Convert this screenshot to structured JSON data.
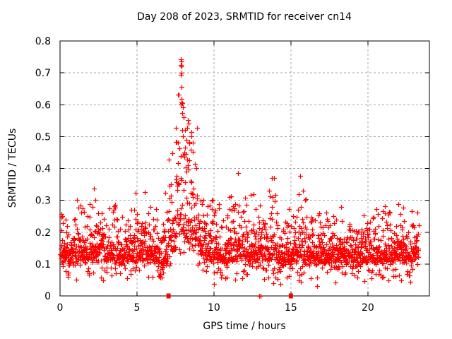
{
  "chart_data": {
    "type": "scatter",
    "title": "Day 208 of 2023, SRMTID for receiver cn14",
    "xlabel": "GPS time / hours",
    "ylabel": "SRMTID / TECUs",
    "xlim": [
      0,
      24
    ],
    "ylim": [
      0,
      0.8
    ],
    "xticks": [
      0,
      5,
      10,
      15,
      20
    ],
    "yticks": [
      0,
      0.1,
      0.2,
      0.3,
      0.4,
      0.5,
      0.6,
      0.7,
      0.8
    ],
    "grid": true,
    "legend": "none",
    "marker": "plus",
    "colors": {
      "point": "#ff0000",
      "grid": "#a6a6a6",
      "axis": "#000000",
      "text": "#000000",
      "background": "#ffffff"
    },
    "n_points": 2200,
    "time_range": [
      0.02,
      23.3
    ],
    "envelope_bins": [
      [
        0.0,
        0.5,
        0.112,
        0.045,
        0.27
      ],
      [
        0.5,
        1.0,
        0.112,
        0.045,
        0.3
      ],
      [
        1.0,
        1.5,
        0.112,
        0.05,
        0.34
      ],
      [
        1.5,
        2.0,
        0.112,
        0.045,
        0.3
      ],
      [
        2.0,
        2.5,
        0.112,
        0.05,
        0.34
      ],
      [
        2.5,
        3.0,
        0.112,
        0.045,
        0.28
      ],
      [
        3.0,
        3.5,
        0.112,
        0.045,
        0.31
      ],
      [
        3.5,
        4.0,
        0.112,
        0.045,
        0.29
      ],
      [
        4.0,
        4.5,
        0.112,
        0.045,
        0.31
      ],
      [
        4.5,
        5.0,
        0.112,
        0.05,
        0.37
      ],
      [
        5.0,
        5.5,
        0.112,
        0.05,
        0.33
      ],
      [
        5.5,
        6.0,
        0.112,
        0.05,
        0.37
      ],
      [
        6.0,
        6.5,
        0.11,
        0.05,
        0.36
      ],
      [
        6.5,
        7.0,
        0.1,
        0.055,
        0.44
      ],
      [
        7.0,
        7.5,
        0.14,
        0.1,
        0.52
      ],
      [
        7.5,
        8.0,
        0.18,
        0.14,
        0.74
      ],
      [
        8.0,
        8.5,
        0.18,
        0.12,
        0.62
      ],
      [
        8.5,
        9.0,
        0.15,
        0.11,
        0.55
      ],
      [
        9.0,
        9.5,
        0.13,
        0.07,
        0.42
      ],
      [
        9.5,
        10.0,
        0.112,
        0.055,
        0.37
      ],
      [
        10.0,
        10.5,
        0.112,
        0.05,
        0.33
      ],
      [
        10.5,
        11.0,
        0.105,
        0.045,
        0.28
      ],
      [
        11.0,
        11.5,
        0.112,
        0.05,
        0.33
      ],
      [
        11.5,
        12.0,
        0.12,
        0.06,
        0.41
      ],
      [
        12.0,
        12.5,
        0.112,
        0.05,
        0.33
      ],
      [
        12.5,
        13.0,
        0.112,
        0.055,
        0.36
      ],
      [
        13.0,
        13.5,
        0.112,
        0.05,
        0.37
      ],
      [
        13.5,
        14.0,
        0.112,
        0.055,
        0.385
      ],
      [
        14.0,
        14.5,
        0.105,
        0.05,
        0.31
      ],
      [
        14.5,
        15.0,
        0.105,
        0.05,
        0.3
      ],
      [
        15.0,
        15.5,
        0.112,
        0.05,
        0.34
      ],
      [
        15.5,
        16.0,
        0.112,
        0.06,
        0.4
      ],
      [
        16.0,
        16.5,
        0.112,
        0.055,
        0.385
      ],
      [
        16.5,
        17.0,
        0.105,
        0.045,
        0.3
      ],
      [
        17.0,
        17.5,
        0.105,
        0.045,
        0.27
      ],
      [
        17.5,
        18.0,
        0.105,
        0.045,
        0.29
      ],
      [
        18.0,
        18.5,
        0.11,
        0.045,
        0.31
      ],
      [
        18.5,
        19.0,
        0.105,
        0.045,
        0.28
      ],
      [
        19.0,
        19.5,
        0.11,
        0.045,
        0.3
      ],
      [
        19.5,
        20.0,
        0.105,
        0.045,
        0.27
      ],
      [
        20.0,
        20.5,
        0.11,
        0.045,
        0.28
      ],
      [
        20.5,
        21.0,
        0.11,
        0.045,
        0.3
      ],
      [
        21.0,
        21.5,
        0.11,
        0.045,
        0.31
      ],
      [
        21.5,
        22.0,
        0.11,
        0.045,
        0.3
      ],
      [
        22.0,
        22.5,
        0.11,
        0.045,
        0.29
      ],
      [
        22.5,
        23.0,
        0.11,
        0.045,
        0.3
      ],
      [
        23.0,
        23.35,
        0.12,
        0.045,
        0.27
      ]
    ],
    "peak_points": [
      [
        7.86,
        0.742
      ],
      [
        7.88,
        0.735
      ],
      [
        7.87,
        0.72
      ],
      [
        7.89,
        0.7
      ],
      [
        7.86,
        0.693
      ],
      [
        7.88,
        0.655
      ],
      [
        7.9,
        0.618
      ],
      [
        7.84,
        0.6
      ],
      [
        7.95,
        0.605
      ],
      [
        8.0,
        0.592
      ],
      [
        7.92,
        0.575
      ],
      [
        8.05,
        0.56
      ],
      [
        8.3,
        0.552
      ],
      [
        8.33,
        0.54
      ],
      [
        8.28,
        0.528
      ],
      [
        8.55,
        0.515
      ],
      [
        8.52,
        0.5
      ],
      [
        8.2,
        0.49
      ],
      [
        8.42,
        0.478
      ],
      [
        8.1,
        0.465
      ]
    ],
    "zero_value_markers": [
      {
        "t": 7.05,
        "marker": "square"
      },
      {
        "t": 12.96,
        "marker": "plus"
      },
      {
        "t": 13.03,
        "marker": "plus"
      },
      {
        "t": 15.0,
        "marker": "square"
      }
    ]
  }
}
